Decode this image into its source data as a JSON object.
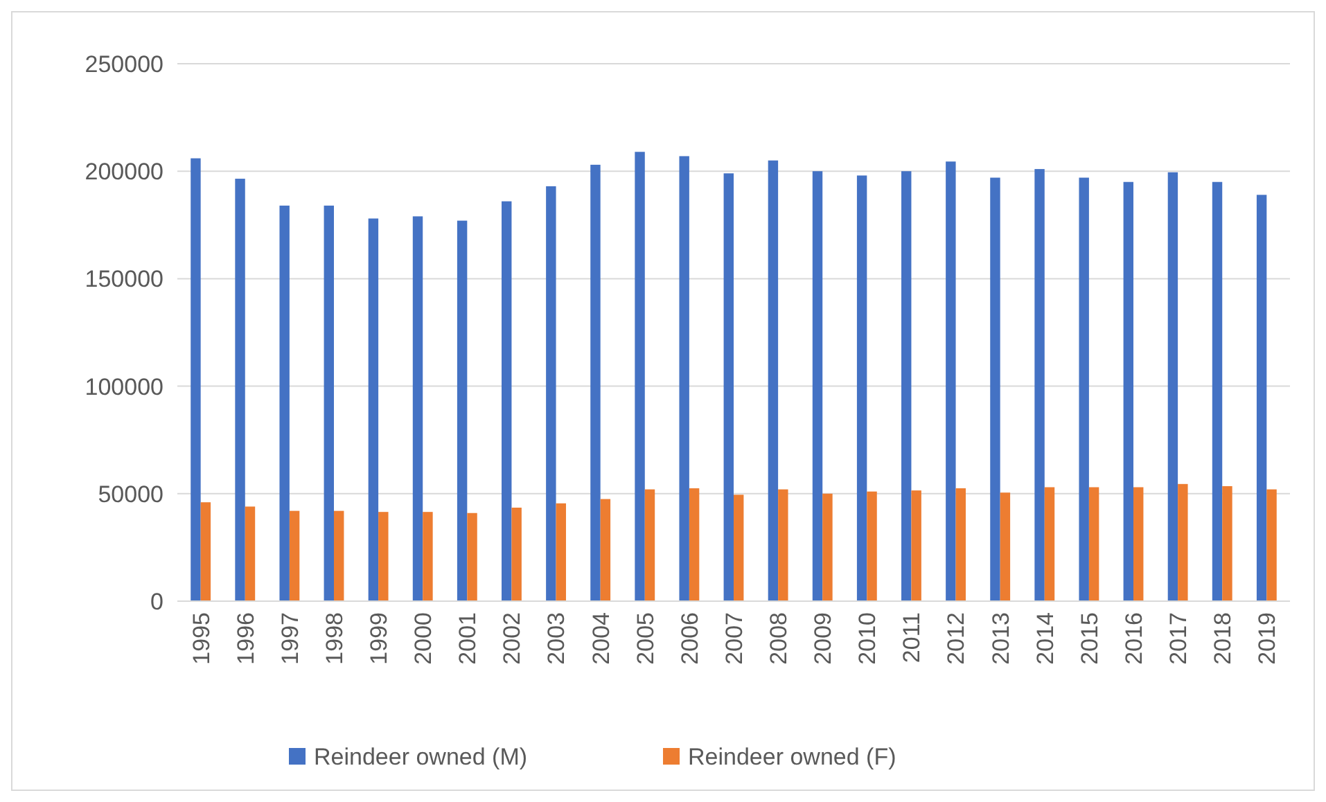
{
  "chart_data": {
    "type": "bar",
    "categories": [
      "1995",
      "1996",
      "1997",
      "1998",
      "1999",
      "2000",
      "2001",
      "2002",
      "2003",
      "2004",
      "2005",
      "2006",
      "2007",
      "2008",
      "2009",
      "2010",
      "2011",
      "2012",
      "2013",
      "2014",
      "2015",
      "2016",
      "2017",
      "2018",
      "2019"
    ],
    "series": [
      {
        "name": "Reindeer owned (M)",
        "color": "#4472c4",
        "values": [
          206000,
          196500,
          184000,
          184000,
          178000,
          179000,
          177000,
          186000,
          193000,
          203000,
          209000,
          207000,
          199000,
          205000,
          200000,
          198000,
          200000,
          204500,
          197000,
          201000,
          197000,
          195000,
          199500,
          195000,
          189000
        ]
      },
      {
        "name": "Reindeer owned (F)",
        "color": "#ed7d31",
        "values": [
          46000,
          44000,
          42000,
          42000,
          41500,
          41500,
          41000,
          43500,
          45500,
          47500,
          52000,
          52500,
          49500,
          52000,
          50000,
          51000,
          51500,
          52500,
          50500,
          53000,
          53000,
          53000,
          54500,
          53500,
          52000
        ]
      }
    ],
    "ylim": [
      0,
      250000
    ],
    "yticks": [
      0,
      50000,
      100000,
      150000,
      200000,
      250000
    ],
    "grid": "y",
    "legend": "bottom"
  }
}
